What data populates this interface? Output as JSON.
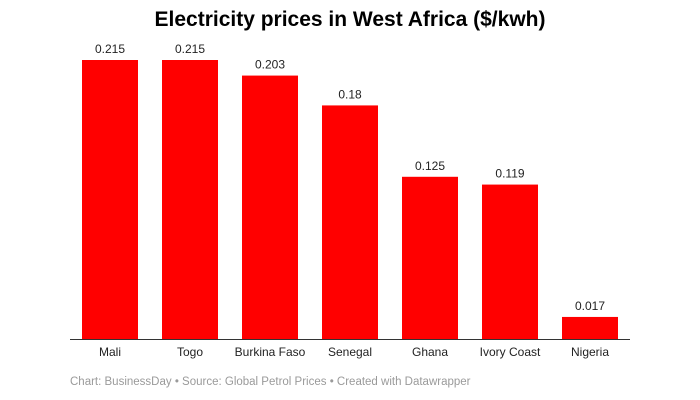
{
  "chart_data": {
    "type": "bar",
    "title": "Electricity prices in West Africa ($/kwh)",
    "categories": [
      "Mali",
      "Togo",
      "Burkina Faso",
      "Senegal",
      "Ghana",
      "Ivory Coast",
      "Nigeria"
    ],
    "values": [
      0.215,
      0.215,
      0.203,
      0.18,
      0.125,
      0.119,
      0.017
    ],
    "value_labels": [
      "0.215",
      "0.215",
      "0.203",
      "0.18",
      "0.125",
      "0.119",
      "0.017"
    ],
    "xlabel": "",
    "ylabel": "",
    "ylim": [
      0,
      0.215
    ],
    "grid": false,
    "bar_color": "#ff0000"
  },
  "footer": "Chart: BusinessDay • Source: Global Petrol Prices • Created with Datawrapper"
}
